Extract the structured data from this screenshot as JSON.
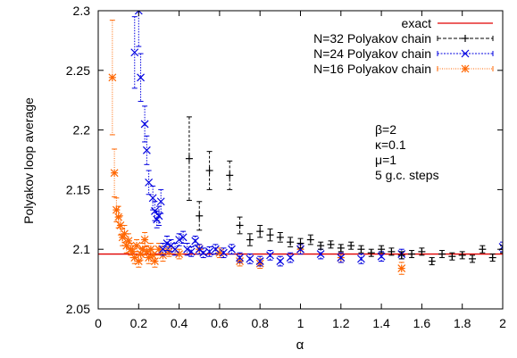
{
  "chart_data": {
    "type": "scatter",
    "title": "",
    "xlabel": "α",
    "ylabel": "Polyakov loop average",
    "xlim": [
      0,
      2
    ],
    "ylim": [
      2.05,
      2.3
    ],
    "grid": false,
    "legend_position": "top-right",
    "x_ticks": [
      "0",
      "0.2",
      "0.4",
      "0.6",
      "0.8",
      "1",
      "1.2",
      "1.4",
      "1.6",
      "1.8",
      "2"
    ],
    "y_ticks": [
      "2.05",
      "2.1",
      "2.15",
      "2.2",
      "2.25",
      "2.3"
    ],
    "annotations": [
      "β=2",
      "κ=0.1",
      "μ=1",
      "5 g.c. steps"
    ],
    "exact": {
      "name": "exact",
      "value": 2.096,
      "color": "#e00000"
    },
    "series": [
      {
        "name": "N=32 Polyakov chain",
        "marker": "plus",
        "color": "#000000",
        "points": [
          {
            "x": 0.45,
            "y": 2.176,
            "err": 0.035
          },
          {
            "x": 0.5,
            "y": 2.128,
            "err": 0.012
          },
          {
            "x": 0.55,
            "y": 2.166,
            "err": 0.016
          },
          {
            "x": 0.65,
            "y": 2.162,
            "err": 0.012
          },
          {
            "x": 0.7,
            "y": 2.12,
            "err": 0.007
          },
          {
            "x": 0.75,
            "y": 2.108,
            "err": 0.005
          },
          {
            "x": 0.8,
            "y": 2.115,
            "err": 0.005
          },
          {
            "x": 0.85,
            "y": 2.112,
            "err": 0.005
          },
          {
            "x": 0.9,
            "y": 2.11,
            "err": 0.004
          },
          {
            "x": 0.95,
            "y": 2.106,
            "err": 0.004
          },
          {
            "x": 1.0,
            "y": 2.105,
            "err": 0.004
          },
          {
            "x": 1.05,
            "y": 2.108,
            "err": 0.004
          },
          {
            "x": 1.1,
            "y": 2.103,
            "err": 0.003
          },
          {
            "x": 1.15,
            "y": 2.104,
            "err": 0.003
          },
          {
            "x": 1.2,
            "y": 2.101,
            "err": 0.003
          },
          {
            "x": 1.25,
            "y": 2.103,
            "err": 0.003
          },
          {
            "x": 1.3,
            "y": 2.1,
            "err": 0.003
          },
          {
            "x": 1.35,
            "y": 2.097,
            "err": 0.003
          },
          {
            "x": 1.4,
            "y": 2.1,
            "err": 0.003
          },
          {
            "x": 1.45,
            "y": 2.098,
            "err": 0.003
          },
          {
            "x": 1.5,
            "y": 2.095,
            "err": 0.003
          },
          {
            "x": 1.55,
            "y": 2.096,
            "err": 0.003
          },
          {
            "x": 1.6,
            "y": 2.098,
            "err": 0.003
          },
          {
            "x": 1.65,
            "y": 2.09,
            "err": 0.003
          },
          {
            "x": 1.7,
            "y": 2.096,
            "err": 0.003
          },
          {
            "x": 1.75,
            "y": 2.094,
            "err": 0.003
          },
          {
            "x": 1.8,
            "y": 2.095,
            "err": 0.003
          },
          {
            "x": 1.85,
            "y": 2.092,
            "err": 0.003
          },
          {
            "x": 1.9,
            "y": 2.1,
            "err": 0.003
          },
          {
            "x": 1.95,
            "y": 2.093,
            "err": 0.003
          },
          {
            "x": 2.0,
            "y": 2.1,
            "err": 0.003
          }
        ]
      },
      {
        "name": "N=24 Polyakov chain",
        "marker": "cross",
        "color": "#0000e0",
        "points": [
          {
            "x": 0.18,
            "y": 2.265,
            "err": 0.03
          },
          {
            "x": 0.2,
            "y": 2.3,
            "err": 0.03
          },
          {
            "x": 0.21,
            "y": 2.244,
            "err": 0.02
          },
          {
            "x": 0.23,
            "y": 2.205,
            "err": 0.015
          },
          {
            "x": 0.24,
            "y": 2.183,
            "err": 0.012
          },
          {
            "x": 0.25,
            "y": 2.156,
            "err": 0.01
          },
          {
            "x": 0.27,
            "y": 2.143,
            "err": 0.01
          },
          {
            "x": 0.28,
            "y": 2.132,
            "err": 0.008
          },
          {
            "x": 0.29,
            "y": 2.125,
            "err": 0.007
          },
          {
            "x": 0.3,
            "y": 2.128,
            "err": 0.008
          },
          {
            "x": 0.31,
            "y": 2.14,
            "err": 0.01
          },
          {
            "x": 0.32,
            "y": 2.1,
            "err": 0.005
          },
          {
            "x": 0.34,
            "y": 2.105,
            "err": 0.006
          },
          {
            "x": 0.36,
            "y": 2.103,
            "err": 0.005
          },
          {
            "x": 0.38,
            "y": 2.1,
            "err": 0.005
          },
          {
            "x": 0.4,
            "y": 2.108,
            "err": 0.005
          },
          {
            "x": 0.42,
            "y": 2.11,
            "err": 0.005
          },
          {
            "x": 0.44,
            "y": 2.1,
            "err": 0.005
          },
          {
            "x": 0.46,
            "y": 2.098,
            "err": 0.004
          },
          {
            "x": 0.48,
            "y": 2.107,
            "err": 0.004
          },
          {
            "x": 0.5,
            "y": 2.1,
            "err": 0.004
          },
          {
            "x": 0.52,
            "y": 2.097,
            "err": 0.004
          },
          {
            "x": 0.55,
            "y": 2.098,
            "err": 0.004
          },
          {
            "x": 0.58,
            "y": 2.1,
            "err": 0.004
          },
          {
            "x": 0.62,
            "y": 2.097,
            "err": 0.004
          },
          {
            "x": 0.66,
            "y": 2.1,
            "err": 0.004
          },
          {
            "x": 0.7,
            "y": 2.093,
            "err": 0.004
          },
          {
            "x": 0.75,
            "y": 2.092,
            "err": 0.004
          },
          {
            "x": 0.8,
            "y": 2.09,
            "err": 0.004
          },
          {
            "x": 0.85,
            "y": 2.095,
            "err": 0.004
          },
          {
            "x": 0.9,
            "y": 2.09,
            "err": 0.004
          },
          {
            "x": 0.95,
            "y": 2.093,
            "err": 0.004
          },
          {
            "x": 1.0,
            "y": 2.1,
            "err": 0.004
          },
          {
            "x": 1.1,
            "y": 2.096,
            "err": 0.004
          },
          {
            "x": 1.2,
            "y": 2.093,
            "err": 0.004
          },
          {
            "x": 1.3,
            "y": 2.092,
            "err": 0.004
          },
          {
            "x": 1.4,
            "y": 2.094,
            "err": 0.004
          },
          {
            "x": 1.5,
            "y": 2.096,
            "err": 0.004
          },
          {
            "x": 2.0,
            "y": 2.102,
            "err": 0.004
          }
        ]
      },
      {
        "name": "N=16 Polyakov chain",
        "marker": "star",
        "color": "#ff6600",
        "points": [
          {
            "x": 0.07,
            "y": 2.244,
            "err": 0.048
          },
          {
            "x": 0.08,
            "y": 2.164,
            "err": 0.02
          },
          {
            "x": 0.09,
            "y": 2.133,
            "err": 0.01
          },
          {
            "x": 0.1,
            "y": 2.127,
            "err": 0.009
          },
          {
            "x": 0.11,
            "y": 2.12,
            "err": 0.008
          },
          {
            "x": 0.12,
            "y": 2.11,
            "err": 0.007
          },
          {
            "x": 0.13,
            "y": 2.113,
            "err": 0.007
          },
          {
            "x": 0.14,
            "y": 2.103,
            "err": 0.006
          },
          {
            "x": 0.15,
            "y": 2.107,
            "err": 0.006
          },
          {
            "x": 0.16,
            "y": 2.1,
            "err": 0.005
          },
          {
            "x": 0.17,
            "y": 2.098,
            "err": 0.005
          },
          {
            "x": 0.18,
            "y": 2.093,
            "err": 0.005
          },
          {
            "x": 0.19,
            "y": 2.103,
            "err": 0.005
          },
          {
            "x": 0.2,
            "y": 2.09,
            "err": 0.005
          },
          {
            "x": 0.21,
            "y": 2.096,
            "err": 0.005
          },
          {
            "x": 0.22,
            "y": 2.1,
            "err": 0.005
          },
          {
            "x": 0.23,
            "y": 2.108,
            "err": 0.006
          },
          {
            "x": 0.24,
            "y": 2.098,
            "err": 0.005
          },
          {
            "x": 0.25,
            "y": 2.093,
            "err": 0.005
          },
          {
            "x": 0.26,
            "y": 2.1,
            "err": 0.005
          },
          {
            "x": 0.27,
            "y": 2.095,
            "err": 0.005
          },
          {
            "x": 0.28,
            "y": 2.09,
            "err": 0.005
          },
          {
            "x": 0.3,
            "y": 2.1,
            "err": 0.005
          },
          {
            "x": 0.32,
            "y": 2.095,
            "err": 0.005
          },
          {
            "x": 0.35,
            "y": 2.098,
            "err": 0.004
          },
          {
            "x": 0.4,
            "y": 2.096,
            "err": 0.004
          },
          {
            "x": 0.5,
            "y": 2.1,
            "err": 0.004
          },
          {
            "x": 0.6,
            "y": 2.097,
            "err": 0.004
          },
          {
            "x": 0.7,
            "y": 2.09,
            "err": 0.004
          },
          {
            "x": 0.8,
            "y": 2.088,
            "err": 0.004
          },
          {
            "x": 1.0,
            "y": 2.1,
            "err": 0.004
          },
          {
            "x": 1.2,
            "y": 2.093,
            "err": 0.004
          },
          {
            "x": 1.5,
            "y": 2.084,
            "err": 0.005
          }
        ]
      }
    ]
  }
}
